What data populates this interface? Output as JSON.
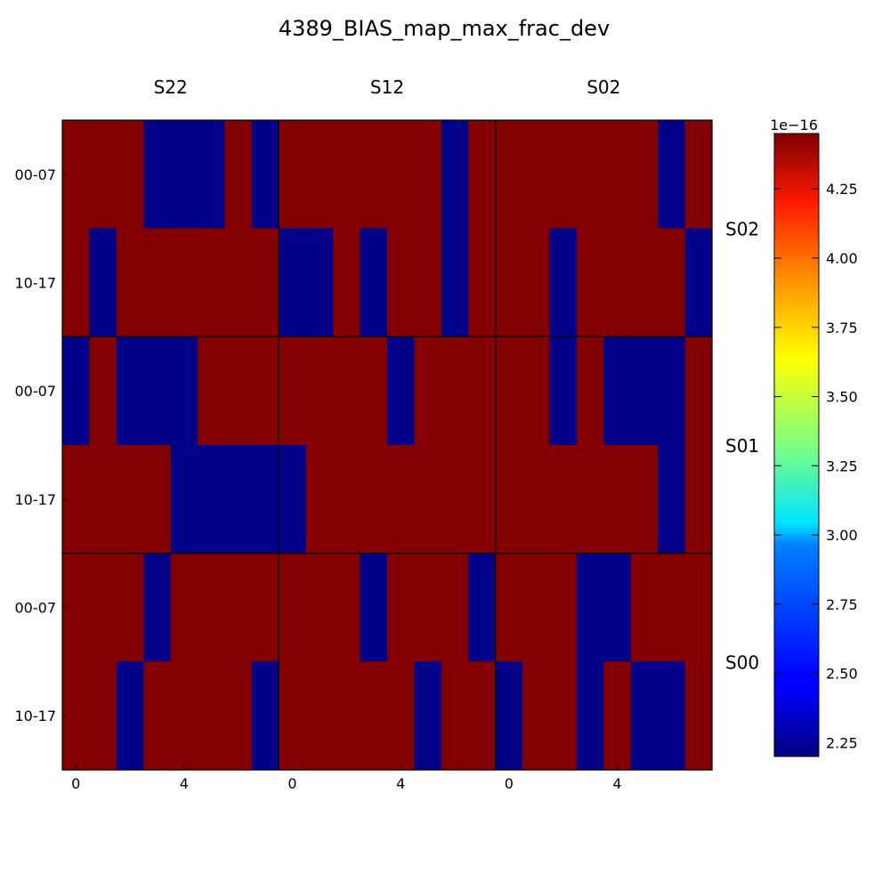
{
  "chart_data": {
    "type": "heatmap",
    "title": "4389_BIAS_map_max_frac_dev",
    "column_groups": [
      "S22",
      "S12",
      "S02"
    ],
    "row_groups": [
      "S02",
      "S01",
      "S00"
    ],
    "row_tick_labels": [
      "00-07",
      "10-17"
    ],
    "x_tick_labels": [
      "0",
      "4"
    ],
    "x_tick_values": [
      0,
      4
    ],
    "cells_per_panel_x": 8,
    "rows_per_panel": 2,
    "colorbar": {
      "min": 2.2,
      "max": 4.45,
      "exponent_label": "1e−16",
      "ticks": [
        2.25,
        2.5,
        2.75,
        3.0,
        3.25,
        3.5,
        3.75,
        4.0,
        4.25
      ],
      "tick_labels": [
        "2.25",
        "2.50",
        "2.75",
        "3.00",
        "3.25",
        "3.50",
        "3.75",
        "4.00",
        "4.25"
      ]
    },
    "panels": [
      {
        "row_group": "S02",
        "column_group": "S22",
        "values": [
          [
            4.44,
            4.44,
            4.44,
            2.22,
            2.22,
            2.22,
            4.44,
            2.22
          ],
          [
            4.44,
            2.22,
            4.44,
            4.44,
            4.44,
            4.44,
            4.44,
            4.44
          ]
        ]
      },
      {
        "row_group": "S02",
        "column_group": "S12",
        "values": [
          [
            4.44,
            4.44,
            4.44,
            4.44,
            4.44,
            4.44,
            2.22,
            4.44
          ],
          [
            2.22,
            2.22,
            4.44,
            2.22,
            4.44,
            4.44,
            2.22,
            4.44
          ]
        ]
      },
      {
        "row_group": "S02",
        "column_group": "S02",
        "values": [
          [
            4.44,
            4.44,
            4.44,
            4.44,
            4.44,
            4.44,
            2.22,
            4.44
          ],
          [
            4.44,
            4.44,
            2.22,
            4.44,
            4.44,
            4.44,
            4.44,
            2.22
          ]
        ]
      },
      {
        "row_group": "S01",
        "column_group": "S22",
        "values": [
          [
            2.22,
            4.44,
            2.22,
            2.22,
            2.22,
            4.44,
            4.44,
            4.44
          ],
          [
            4.44,
            4.44,
            4.44,
            4.44,
            2.22,
            2.22,
            2.22,
            2.22
          ]
        ]
      },
      {
        "row_group": "S01",
        "column_group": "S12",
        "values": [
          [
            4.44,
            4.44,
            4.44,
            4.44,
            2.22,
            4.44,
            4.44,
            4.44
          ],
          [
            2.22,
            4.44,
            4.44,
            4.44,
            4.44,
            4.44,
            4.44,
            4.44
          ]
        ]
      },
      {
        "row_group": "S01",
        "column_group": "S02",
        "values": [
          [
            4.44,
            4.44,
            2.22,
            4.44,
            2.22,
            2.22,
            2.22,
            4.44
          ],
          [
            4.44,
            4.44,
            4.44,
            4.44,
            4.44,
            4.44,
            2.22,
            4.44
          ]
        ]
      },
      {
        "row_group": "S00",
        "column_group": "S22",
        "values": [
          [
            4.44,
            4.44,
            4.44,
            2.22,
            4.44,
            4.44,
            4.44,
            4.44
          ],
          [
            4.44,
            4.44,
            2.22,
            4.44,
            4.44,
            4.44,
            4.44,
            2.22
          ]
        ]
      },
      {
        "row_group": "S00",
        "column_group": "S12",
        "values": [
          [
            4.44,
            4.44,
            4.44,
            2.22,
            4.44,
            4.44,
            4.44,
            2.22
          ],
          [
            4.44,
            4.44,
            4.44,
            4.44,
            4.44,
            2.22,
            4.44,
            4.44
          ]
        ]
      },
      {
        "row_group": "S00",
        "column_group": "S02",
        "values": [
          [
            4.44,
            4.44,
            4.44,
            2.22,
            2.22,
            4.44,
            4.44,
            4.44
          ],
          [
            2.22,
            4.44,
            4.44,
            2.22,
            4.44,
            2.22,
            2.22,
            4.44
          ]
        ]
      }
    ]
  }
}
